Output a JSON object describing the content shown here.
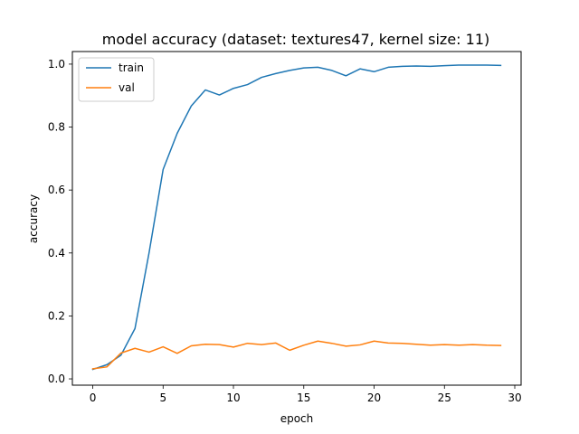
{
  "chart_data": {
    "type": "line",
    "title": "model accuracy (dataset: textures47, kernel size: 11)",
    "xlabel": "epoch",
    "ylabel": "accuracy",
    "xlim": [
      -1.45,
      30.45
    ],
    "ylim": [
      -0.02,
      1.04
    ],
    "xticks": [
      0,
      5,
      10,
      15,
      20,
      25,
      30
    ],
    "yticks": [
      0.0,
      0.2,
      0.4,
      0.6,
      0.8,
      1.0
    ],
    "ytick_labels": [
      "0.0",
      "0.2",
      "0.4",
      "0.6",
      "0.8",
      "1.0"
    ],
    "legend_position": "top-left",
    "grid": false,
    "x": [
      0,
      1,
      2,
      3,
      4,
      5,
      6,
      7,
      8,
      9,
      10,
      11,
      12,
      13,
      14,
      15,
      16,
      17,
      18,
      19,
      20,
      21,
      22,
      23,
      24,
      25,
      26,
      27,
      28,
      29
    ],
    "series": [
      {
        "name": "train",
        "color": "#1f77b4",
        "values": [
          0.03,
          0.045,
          0.075,
          0.16,
          0.4,
          0.665,
          0.78,
          0.867,
          0.918,
          0.902,
          0.923,
          0.935,
          0.958,
          0.97,
          0.98,
          0.988,
          0.99,
          0.98,
          0.963,
          0.985,
          0.976,
          0.99,
          0.993,
          0.994,
          0.993,
          0.995,
          0.997,
          0.997,
          0.997,
          0.996
        ]
      },
      {
        "name": "val",
        "color": "#ff7f0e",
        "values": [
          0.032,
          0.038,
          0.082,
          0.097,
          0.085,
          0.102,
          0.081,
          0.105,
          0.11,
          0.109,
          0.101,
          0.113,
          0.109,
          0.114,
          0.091,
          0.107,
          0.12,
          0.113,
          0.104,
          0.108,
          0.12,
          0.114,
          0.113,
          0.11,
          0.107,
          0.109,
          0.107,
          0.109,
          0.107,
          0.106
        ]
      }
    ]
  }
}
